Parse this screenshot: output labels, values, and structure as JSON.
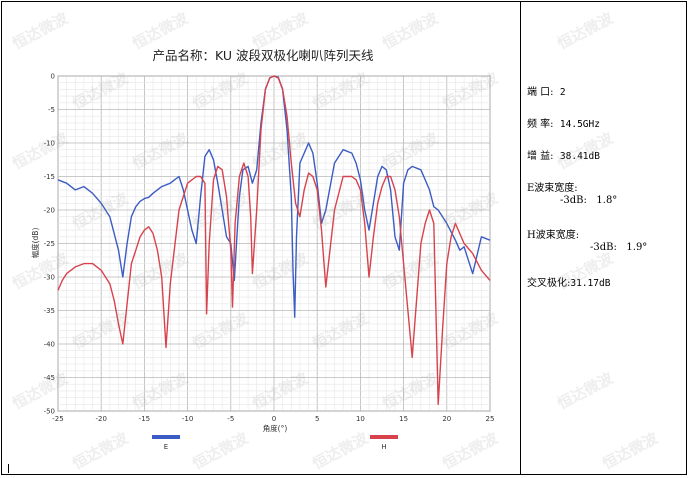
{
  "chart_data": {
    "type": "line",
    "title": "产品名称：KU 波段双极化喇叭阵列天线",
    "xlabel": "角度(°)",
    "ylabel": "幅度(dB)",
    "xlim": [
      -25,
      25
    ],
    "ylim": [
      -50,
      0
    ],
    "x_ticks": [
      -25,
      -20,
      -15,
      -10,
      -5,
      0,
      5,
      10,
      15,
      20,
      25
    ],
    "y_ticks": [
      0,
      -5,
      -10,
      -15,
      -20,
      -25,
      -30,
      -35,
      -40,
      -45,
      -50
    ],
    "grid": true,
    "legend_position": "bottom",
    "series": [
      {
        "name": "E",
        "color": "#3b5cc4",
        "x": [
          -25,
          -24,
          -23,
          -22,
          -21,
          -20,
          -19.5,
          -19,
          -18,
          -17.5,
          -17,
          -16.5,
          -16,
          -15.5,
          -15,
          -14.5,
          -14,
          -13,
          -12,
          -11.5,
          -11,
          -10.5,
          -10,
          -9.5,
          -9,
          -8.5,
          -8,
          -7.5,
          -7,
          -6.5,
          -6,
          -5.5,
          -5,
          -4.6,
          -4.2,
          -4,
          -3.6,
          -3,
          -2.5,
          -2,
          -1.5,
          -1,
          -0.5,
          0,
          0.5,
          1,
          1.5,
          2,
          2.2,
          2.4,
          2.6,
          3,
          3.5,
          4,
          4.5,
          5,
          5.5,
          6,
          7,
          8,
          9,
          9.5,
          10,
          10.5,
          11,
          11.5,
          12,
          12.5,
          13,
          13.5,
          14,
          14.5,
          15,
          15.5,
          16,
          17,
          18,
          18.5,
          19,
          20,
          21,
          21.5,
          22,
          22.5,
          23,
          24,
          25
        ],
        "y": [
          -15.5,
          -16,
          -17,
          -16.5,
          -17.5,
          -19,
          -20,
          -21,
          -26,
          -30,
          -25,
          -21,
          -19.5,
          -18.7,
          -18.3,
          -18.1,
          -17.5,
          -16.5,
          -16,
          -15.5,
          -15,
          -17,
          -20,
          -23,
          -25,
          -18,
          -12,
          -11,
          -12.5,
          -16,
          -20,
          -24,
          -25,
          -30.5,
          -22,
          -18,
          -14,
          -13.5,
          -16,
          -14,
          -7,
          -2,
          -0.3,
          0,
          -0.2,
          -2,
          -8,
          -18,
          -29,
          -36,
          -24,
          -13,
          -11.5,
          -10,
          -11.5,
          -16,
          -22,
          -20,
          -13,
          -11,
          -11.5,
          -13,
          -15.5,
          -20,
          -23,
          -19,
          -15,
          -13.5,
          -14,
          -17,
          -24,
          -26,
          -16,
          -14,
          -13.5,
          -14,
          -17,
          -19.5,
          -20,
          -22,
          -24.5,
          -26,
          -25.5,
          -27.5,
          -29.5,
          -24,
          -24.5
        ]
      },
      {
        "name": "H",
        "color": "#d8424c",
        "x": [
          -25,
          -24.5,
          -24,
          -23,
          -22,
          -21,
          -20,
          -19,
          -18.5,
          -18,
          -17.5,
          -17,
          -16.5,
          -16,
          -15.5,
          -15,
          -14.5,
          -14,
          -13.5,
          -13,
          -12.5,
          -12,
          -11,
          -10,
          -9,
          -8.5,
          -8,
          -7.8,
          -7.5,
          -7,
          -6.5,
          -6,
          -5.5,
          -5,
          -4.8,
          -4.5,
          -4,
          -3.5,
          -3,
          -2.7,
          -2.5,
          -2,
          -1.5,
          -1,
          -0.5,
          0,
          0.5,
          1,
          1.5,
          2,
          2.5,
          3,
          3.5,
          4,
          4.5,
          5,
          5.5,
          6,
          7,
          8,
          9,
          9.5,
          10,
          10.5,
          11,
          11.5,
          12,
          12.5,
          13,
          13.5,
          14,
          14.5,
          15,
          16,
          17,
          17.5,
          18,
          18.5,
          19,
          19.5,
          20,
          20.5,
          21,
          22,
          23,
          24,
          25
        ],
        "y": [
          -32,
          -30.5,
          -29.5,
          -28.5,
          -28,
          -28,
          -29,
          -31,
          -33.5,
          -37,
          -40,
          -34,
          -28,
          -26,
          -24,
          -23,
          -22.5,
          -23.5,
          -26,
          -30,
          -40.5,
          -31,
          -20,
          -16,
          -15,
          -15,
          -16,
          -35.5,
          -25,
          -15.5,
          -13.5,
          -14,
          -18,
          -26,
          -34.5,
          -22,
          -15,
          -13,
          -15,
          -21,
          -29.5,
          -20,
          -8,
          -2,
          -0.3,
          0,
          -0.3,
          -2,
          -6,
          -13,
          -19,
          -21,
          -17,
          -14.5,
          -15,
          -17,
          -23,
          -31.5,
          -20,
          -15,
          -15,
          -15.5,
          -17,
          -22,
          -30,
          -24,
          -19,
          -16.5,
          -15,
          -15,
          -17,
          -21,
          -28,
          -42,
          -25,
          -22,
          -20,
          -22,
          -49,
          -38,
          -28,
          -24,
          -22,
          -25,
          -26.5,
          -29,
          -30.5
        ]
      }
    ]
  },
  "specs": {
    "port_label": "端 口:",
    "port_value": "2",
    "freq_label": "频 率:",
    "freq_value": "14.5GHz",
    "gain_label": "增 益:",
    "gain_value": "38.41dB",
    "e_bw_label": "E波束宽度:",
    "e_bw_value": "-3dB:   1.8°",
    "h_bw_label": "H波束宽度:",
    "h_bw_value": "-3dB:   1.9°",
    "xpol_label": "交叉极化:",
    "xpol_value": "31.17dB"
  },
  "watermark": {
    "text": "恒达微波"
  }
}
